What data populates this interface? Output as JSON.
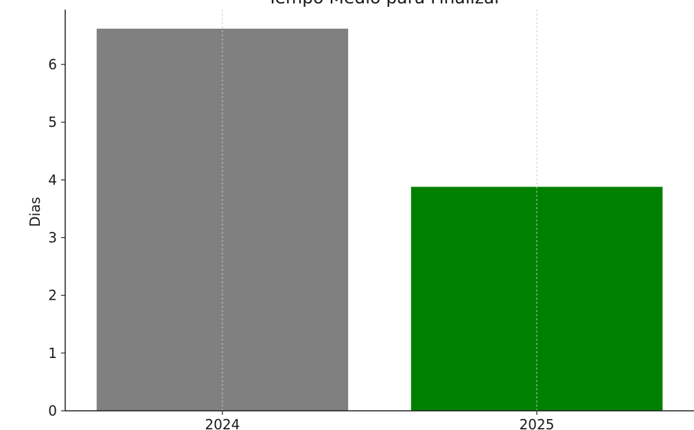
{
  "chart_data": {
    "type": "bar",
    "title": "Tempo Médio para Finalizar",
    "xlabel": "",
    "ylabel": "Dias",
    "categories": [
      "2024",
      "2025"
    ],
    "values": [
      6.62,
      3.88
    ],
    "colors": [
      "#808080",
      "#008000"
    ],
    "ylim": [
      0,
      6.95
    ],
    "yticks": [
      0,
      1,
      2,
      3,
      4,
      5,
      6
    ],
    "grid": "x-dashed"
  }
}
